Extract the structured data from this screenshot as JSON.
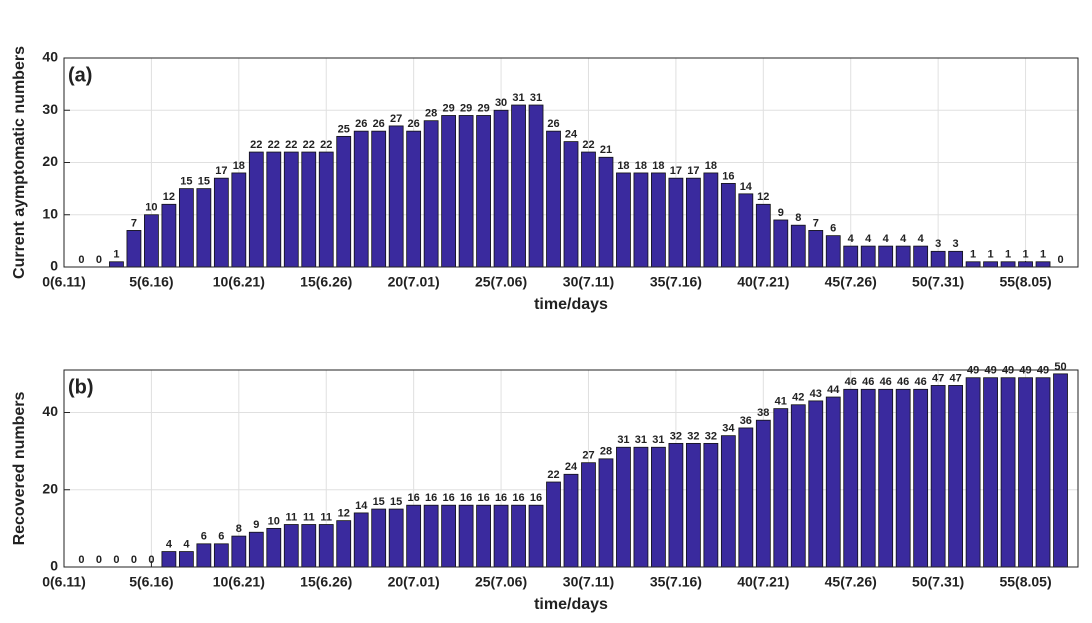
{
  "chart_data": [
    {
      "type": "bar",
      "annotation": "(a)",
      "xlabel": "time/days",
      "ylabel": "Current aymptomatic numbers",
      "x": [
        1,
        2,
        3,
        4,
        5,
        6,
        7,
        8,
        9,
        10,
        11,
        12,
        13,
        14,
        15,
        16,
        17,
        18,
        19,
        20,
        21,
        22,
        23,
        24,
        25,
        26,
        27,
        28,
        29,
        30,
        31,
        32,
        33,
        34,
        35,
        36,
        37,
        38,
        39,
        40,
        41,
        42,
        43,
        44,
        45,
        46,
        47,
        48,
        49,
        50,
        51,
        52,
        53,
        54,
        55,
        56,
        57
      ],
      "values": [
        0,
        0,
        1,
        7,
        10,
        12,
        15,
        15,
        17,
        18,
        22,
        22,
        22,
        22,
        22,
        25,
        26,
        26,
        27,
        26,
        28,
        29,
        29,
        29,
        30,
        31,
        31,
        26,
        24,
        22,
        21,
        18,
        18,
        18,
        17,
        17,
        18,
        16,
        14,
        12,
        9,
        8,
        7,
        6,
        4,
        4,
        4,
        4,
        4,
        3,
        3,
        1,
        1,
        1,
        1,
        1,
        0
      ],
      "color": "#3a2a9e",
      "xlim": [
        0,
        58
      ],
      "ylim": [
        0,
        40
      ],
      "yticks": [
        0,
        10,
        20,
        30,
        40
      ],
      "xticks": [
        {
          "value": 0,
          "label": "0(6.11)"
        },
        {
          "value": 5,
          "label": "5(6.16)"
        },
        {
          "value": 10,
          "label": "10(6.21)"
        },
        {
          "value": 15,
          "label": "15(6.26)"
        },
        {
          "value": 20,
          "label": "20(7.01)"
        },
        {
          "value": 25,
          "label": "25(7.06)"
        },
        {
          "value": 30,
          "label": "30(7.11)"
        },
        {
          "value": 35,
          "label": "35(7.16)"
        },
        {
          "value": 40,
          "label": "40(7.21)"
        },
        {
          "value": 45,
          "label": "45(7.26)"
        },
        {
          "value": 50,
          "label": "50(7.31)"
        },
        {
          "value": 55,
          "label": "55(8.05)"
        }
      ],
      "grid": true
    },
    {
      "type": "bar",
      "annotation": "(b)",
      "xlabel": "time/days",
      "ylabel": "Recovered numbers",
      "x": [
        1,
        2,
        3,
        4,
        5,
        6,
        7,
        8,
        9,
        10,
        11,
        12,
        13,
        14,
        15,
        16,
        17,
        18,
        19,
        20,
        21,
        22,
        23,
        24,
        25,
        26,
        27,
        28,
        29,
        30,
        31,
        32,
        33,
        34,
        35,
        36,
        37,
        38,
        39,
        40,
        41,
        42,
        43,
        44,
        45,
        46,
        47,
        48,
        49,
        50,
        51,
        52,
        53,
        54,
        55,
        56,
        57
      ],
      "values": [
        0,
        0,
        0,
        0,
        0,
        4,
        4,
        6,
        6,
        8,
        9,
        10,
        11,
        11,
        11,
        12,
        14,
        15,
        15,
        16,
        16,
        16,
        16,
        16,
        16,
        16,
        16,
        22,
        24,
        27,
        28,
        31,
        31,
        31,
        32,
        32,
        32,
        34,
        36,
        38,
        41,
        42,
        43,
        44,
        46,
        46,
        46,
        46,
        46,
        47,
        47,
        49,
        49,
        49,
        49,
        49,
        50
      ],
      "color": "#3a2a9e",
      "xlim": [
        0,
        58
      ],
      "ylim": [
        0,
        51
      ],
      "yticks": [
        0,
        20,
        40
      ],
      "xticks": [
        {
          "value": 0,
          "label": "0(6.11)"
        },
        {
          "value": 5,
          "label": "5(6.16)"
        },
        {
          "value": 10,
          "label": "10(6.21)"
        },
        {
          "value": 15,
          "label": "15(6.26)"
        },
        {
          "value": 20,
          "label": "20(7.01)"
        },
        {
          "value": 25,
          "label": "25(7.06)"
        },
        {
          "value": 30,
          "label": "30(7.11)"
        },
        {
          "value": 35,
          "label": "35(7.16)"
        },
        {
          "value": 40,
          "label": "40(7.21)"
        },
        {
          "value": 45,
          "label": "45(7.26)"
        },
        {
          "value": 50,
          "label": "50(7.31)"
        },
        {
          "value": 55,
          "label": "55(8.05)"
        }
      ],
      "grid": true
    }
  ]
}
